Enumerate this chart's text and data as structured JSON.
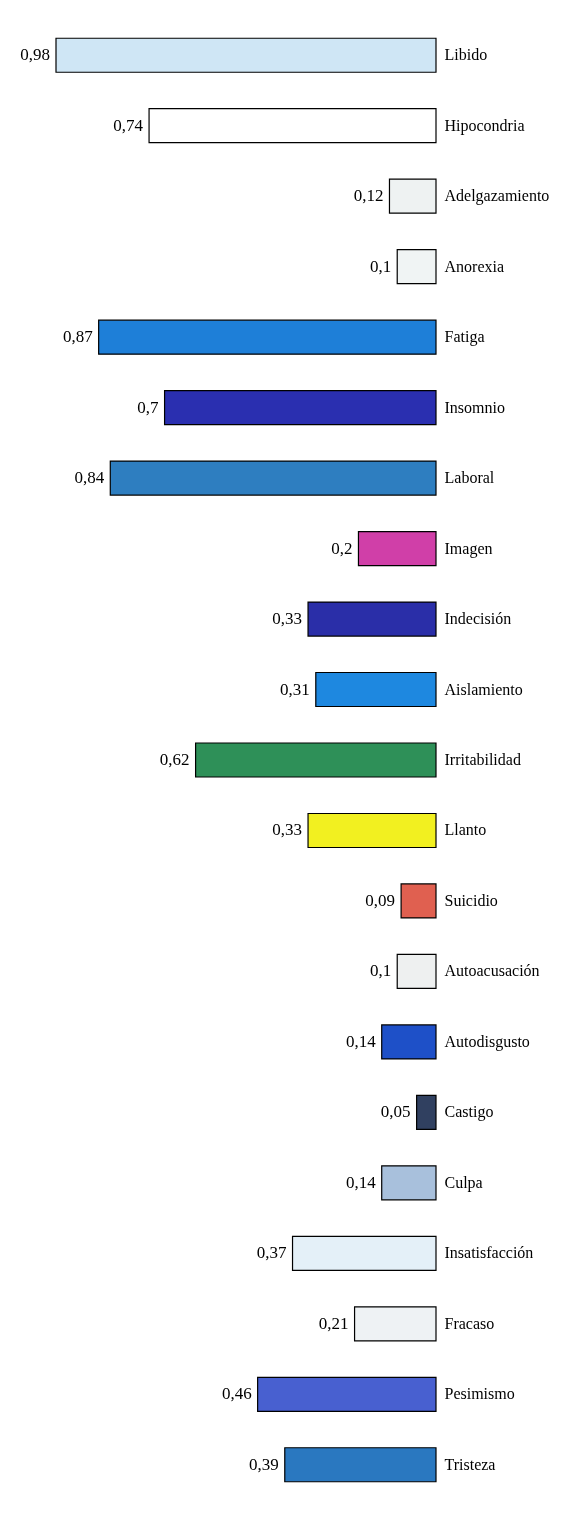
{
  "chart_data": {
    "type": "bar",
    "orientation": "horizontal",
    "categories": [
      "Libido",
      "Hipocondria",
      "Adelgazamiento",
      "Anorexia",
      "Fatiga",
      "Insomnio",
      "Laboral",
      "Imagen",
      "Indecisión",
      "Aislamiento",
      "Irritabilidad",
      "Llanto",
      "Suicidio",
      "Autoacusación",
      "Autodisgusto",
      "Castigo",
      "Culpa",
      "Insatisfacción",
      "Fracaso",
      "Pesimismo",
      "Tristeza"
    ],
    "values": [
      0.98,
      0.74,
      0.12,
      0.1,
      0.87,
      0.7,
      0.84,
      0.2,
      0.33,
      0.31,
      0.62,
      0.33,
      0.09,
      0.1,
      0.14,
      0.05,
      0.14,
      0.37,
      0.21,
      0.46,
      0.39
    ],
    "value_labels": [
      "0,98",
      "0,74",
      "0,12",
      "0,1",
      "0,87",
      "0,7",
      "0,84",
      "0,2",
      "0,33",
      "0,31",
      "0,62",
      "0,33",
      "0,09",
      "0,1",
      "0,14",
      "0,05",
      "0,14",
      "0,37",
      "0,21",
      "0,46",
      "0,39"
    ],
    "colors": [
      "#cfe6f5",
      "#ffffff",
      "#eef2f2",
      "#f0f4f4",
      "#1e7fd8",
      "#2a2fb0",
      "#2e7ec0",
      "#d03fa8",
      "#2a2ea8",
      "#1e88e0",
      "#2e9058",
      "#f2f020",
      "#e06050",
      "#eef0f0",
      "#1e50c8",
      "#304060",
      "#a8c0dc",
      "#e4f0f8",
      "#eef2f4",
      "#4860d0",
      "#2a78c0"
    ],
    "legend": false,
    "grid": false
  }
}
